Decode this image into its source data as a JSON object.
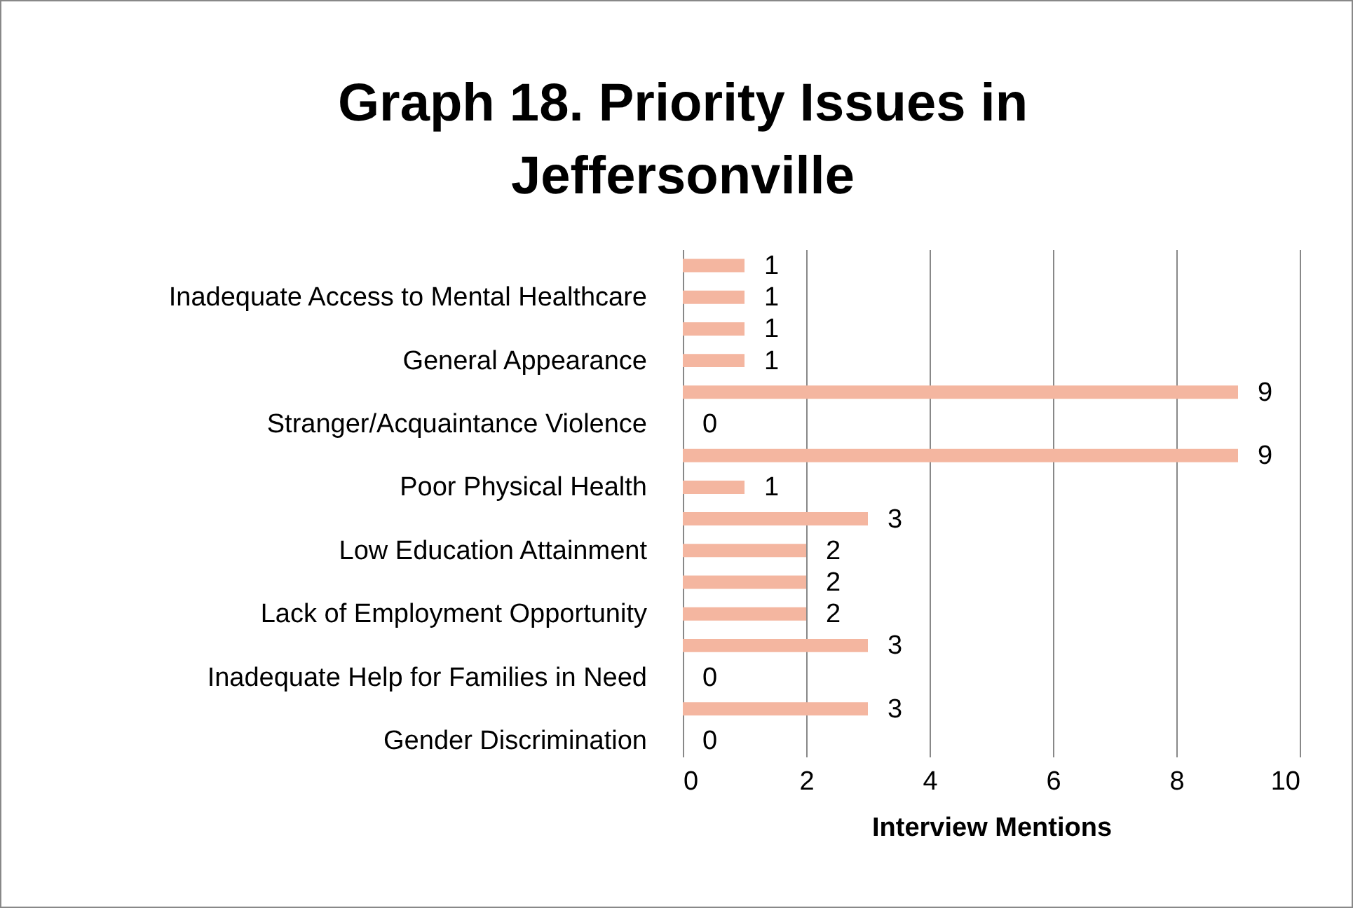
{
  "chart_data": {
    "type": "bar",
    "orientation": "horizontal",
    "title": "Graph 18.  Priority Issues in Jeffersonville",
    "xlabel": "Interview Mentions",
    "categories": [
      null,
      "Inadequate Access to Mental Healthcare",
      null,
      "General Appearance",
      null,
      "Stranger/Acquaintance Violence",
      null,
      "Poor Physical Health",
      null,
      "Low Education Attainment",
      null,
      "Lack of Employment Opportunity",
      null,
      "Inadequate Help for Families in Need",
      null,
      "Gender Discrimination"
    ],
    "values": [
      1,
      1,
      1,
      1,
      9,
      0,
      9,
      1,
      3,
      2,
      2,
      2,
      3,
      0,
      3,
      0
    ],
    "color": "#f4b6a0",
    "xlim": [
      0,
      10
    ],
    "xticks": [
      0,
      2,
      4,
      6,
      8,
      10
    ],
    "grid": "x",
    "data_labels": true
  }
}
